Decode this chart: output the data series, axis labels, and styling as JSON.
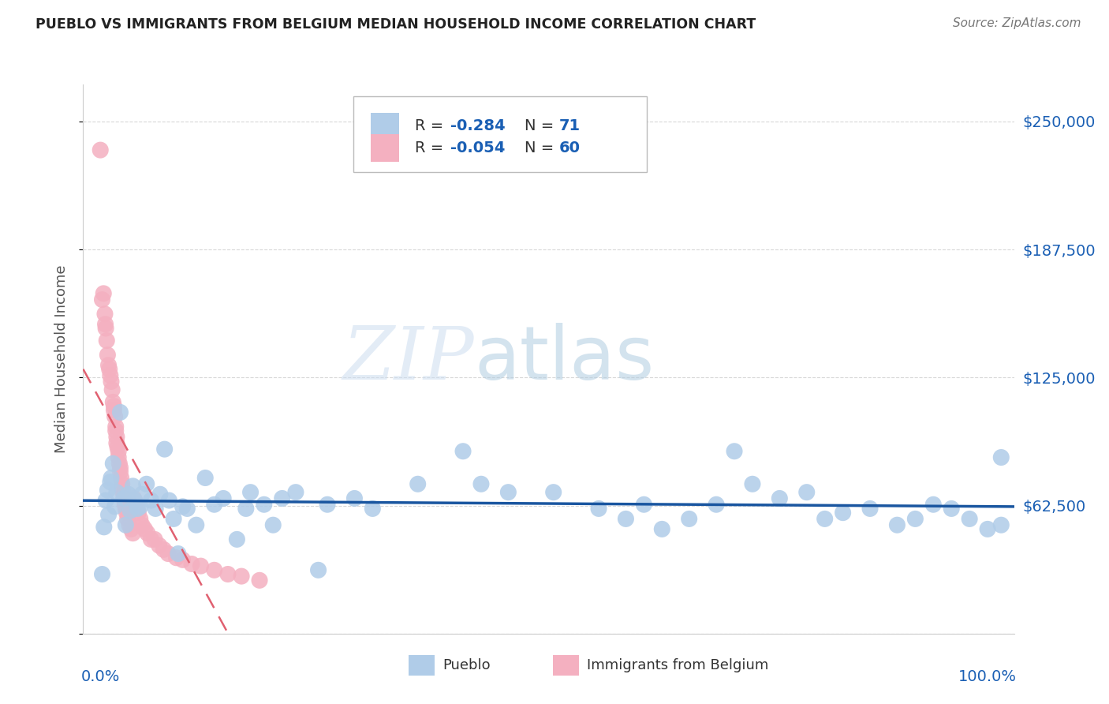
{
  "title": "PUEBLO VS IMMIGRANTS FROM BELGIUM MEDIAN HOUSEHOLD INCOME CORRELATION CHART",
  "source": "Source: ZipAtlas.com",
  "ylabel": "Median Household Income",
  "watermark_zip": "ZIP",
  "watermark_atlas": "atlas",
  "y_ticks": [
    0,
    62500,
    125000,
    187500,
    250000
  ],
  "y_tick_labels": [
    "",
    "$62,500",
    "$125,000",
    "$187,500",
    "$250,000"
  ],
  "ylim": [
    0,
    268000
  ],
  "xlim": [
    -0.015,
    1.015
  ],
  "legend_blue_R": "-0.284",
  "legend_blue_N": "71",
  "legend_pink_R": "-0.054",
  "legend_pink_N": "60",
  "blue_color": "#b0cce8",
  "pink_color": "#f4b0c0",
  "blue_line_color": "#1a56a0",
  "pink_line_color": "#e06070",
  "legend_text_color": "#333333",
  "legend_number_color": "#1a5fb4",
  "blue_scatter": [
    [
      0.006,
      29000
    ],
    [
      0.008,
      52000
    ],
    [
      0.01,
      65000
    ],
    [
      0.012,
      70000
    ],
    [
      0.013,
      58000
    ],
    [
      0.015,
      74000
    ],
    [
      0.016,
      76000
    ],
    [
      0.018,
      83000
    ],
    [
      0.02,
      62000
    ],
    [
      0.022,
      69000
    ],
    [
      0.026,
      108000
    ],
    [
      0.03,
      66000
    ],
    [
      0.032,
      53000
    ],
    [
      0.035,
      68000
    ],
    [
      0.037,
      60000
    ],
    [
      0.04,
      72000
    ],
    [
      0.042,
      65000
    ],
    [
      0.045,
      61000
    ],
    [
      0.048,
      62000
    ],
    [
      0.05,
      68000
    ],
    [
      0.055,
      73000
    ],
    [
      0.06,
      65000
    ],
    [
      0.065,
      61000
    ],
    [
      0.07,
      68000
    ],
    [
      0.075,
      90000
    ],
    [
      0.08,
      65000
    ],
    [
      0.085,
      56000
    ],
    [
      0.09,
      39000
    ],
    [
      0.095,
      62000
    ],
    [
      0.1,
      61000
    ],
    [
      0.11,
      53000
    ],
    [
      0.12,
      76000
    ],
    [
      0.13,
      63000
    ],
    [
      0.14,
      66000
    ],
    [
      0.155,
      46000
    ],
    [
      0.165,
      61000
    ],
    [
      0.17,
      69000
    ],
    [
      0.185,
      63000
    ],
    [
      0.195,
      53000
    ],
    [
      0.205,
      66000
    ],
    [
      0.22,
      69000
    ],
    [
      0.245,
      31000
    ],
    [
      0.255,
      63000
    ],
    [
      0.285,
      66000
    ],
    [
      0.305,
      61000
    ],
    [
      0.355,
      73000
    ],
    [
      0.405,
      89000
    ],
    [
      0.425,
      73000
    ],
    [
      0.455,
      69000
    ],
    [
      0.505,
      69000
    ],
    [
      0.555,
      61000
    ],
    [
      0.585,
      56000
    ],
    [
      0.605,
      63000
    ],
    [
      0.625,
      51000
    ],
    [
      0.655,
      56000
    ],
    [
      0.685,
      63000
    ],
    [
      0.705,
      89000
    ],
    [
      0.725,
      73000
    ],
    [
      0.755,
      66000
    ],
    [
      0.785,
      69000
    ],
    [
      0.805,
      56000
    ],
    [
      0.825,
      59000
    ],
    [
      0.855,
      61000
    ],
    [
      0.885,
      53000
    ],
    [
      0.905,
      56000
    ],
    [
      0.925,
      63000
    ],
    [
      0.945,
      61000
    ],
    [
      0.965,
      56000
    ],
    [
      0.985,
      51000
    ],
    [
      1.0,
      53000
    ],
    [
      1.0,
      86000
    ]
  ],
  "pink_scatter": [
    [
      0.004,
      236000
    ],
    [
      0.006,
      163000
    ],
    [
      0.0075,
      166000
    ],
    [
      0.009,
      156000
    ],
    [
      0.0095,
      151000
    ],
    [
      0.01,
      149000
    ],
    [
      0.011,
      143000
    ],
    [
      0.012,
      136000
    ],
    [
      0.013,
      131000
    ],
    [
      0.014,
      129000
    ],
    [
      0.015,
      126000
    ],
    [
      0.016,
      123000
    ],
    [
      0.017,
      119000
    ],
    [
      0.018,
      113000
    ],
    [
      0.019,
      111000
    ],
    [
      0.019,
      109000
    ],
    [
      0.02,
      106000
    ],
    [
      0.021,
      101000
    ],
    [
      0.021,
      99000
    ],
    [
      0.022,
      96000
    ],
    [
      0.022,
      93000
    ],
    [
      0.023,
      91000
    ],
    [
      0.024,
      89000
    ],
    [
      0.024,
      86000
    ],
    [
      0.025,
      83000
    ],
    [
      0.026,
      81000
    ],
    [
      0.026,
      79000
    ],
    [
      0.027,
      76000
    ],
    [
      0.028,
      73000
    ],
    [
      0.028,
      71000
    ],
    [
      0.029,
      69000
    ],
    [
      0.03,
      66000
    ],
    [
      0.031,
      63000
    ],
    [
      0.032,
      61000
    ],
    [
      0.033,
      59000
    ],
    [
      0.034,
      56000
    ],
    [
      0.036,
      53000
    ],
    [
      0.038,
      51000
    ],
    [
      0.04,
      49000
    ],
    [
      0.041,
      66000
    ],
    [
      0.042,
      63000
    ],
    [
      0.044,
      61000
    ],
    [
      0.046,
      59000
    ],
    [
      0.048,
      56000
    ],
    [
      0.05,
      53000
    ],
    [
      0.053,
      51000
    ],
    [
      0.056,
      49000
    ],
    [
      0.06,
      46000
    ],
    [
      0.064,
      46000
    ],
    [
      0.069,
      43000
    ],
    [
      0.074,
      41000
    ],
    [
      0.079,
      39000
    ],
    [
      0.088,
      37000
    ],
    [
      0.095,
      36000
    ],
    [
      0.105,
      34000
    ],
    [
      0.115,
      33000
    ],
    [
      0.13,
      31000
    ],
    [
      0.145,
      29000
    ],
    [
      0.16,
      28000
    ],
    [
      0.18,
      26000
    ]
  ],
  "background_color": "#ffffff",
  "grid_color": "#d8d8d8",
  "title_color": "#222222",
  "source_color": "#777777",
  "axis_color": "#1a5fb4",
  "ylabel_color": "#555555",
  "spine_color": "#cccccc"
}
